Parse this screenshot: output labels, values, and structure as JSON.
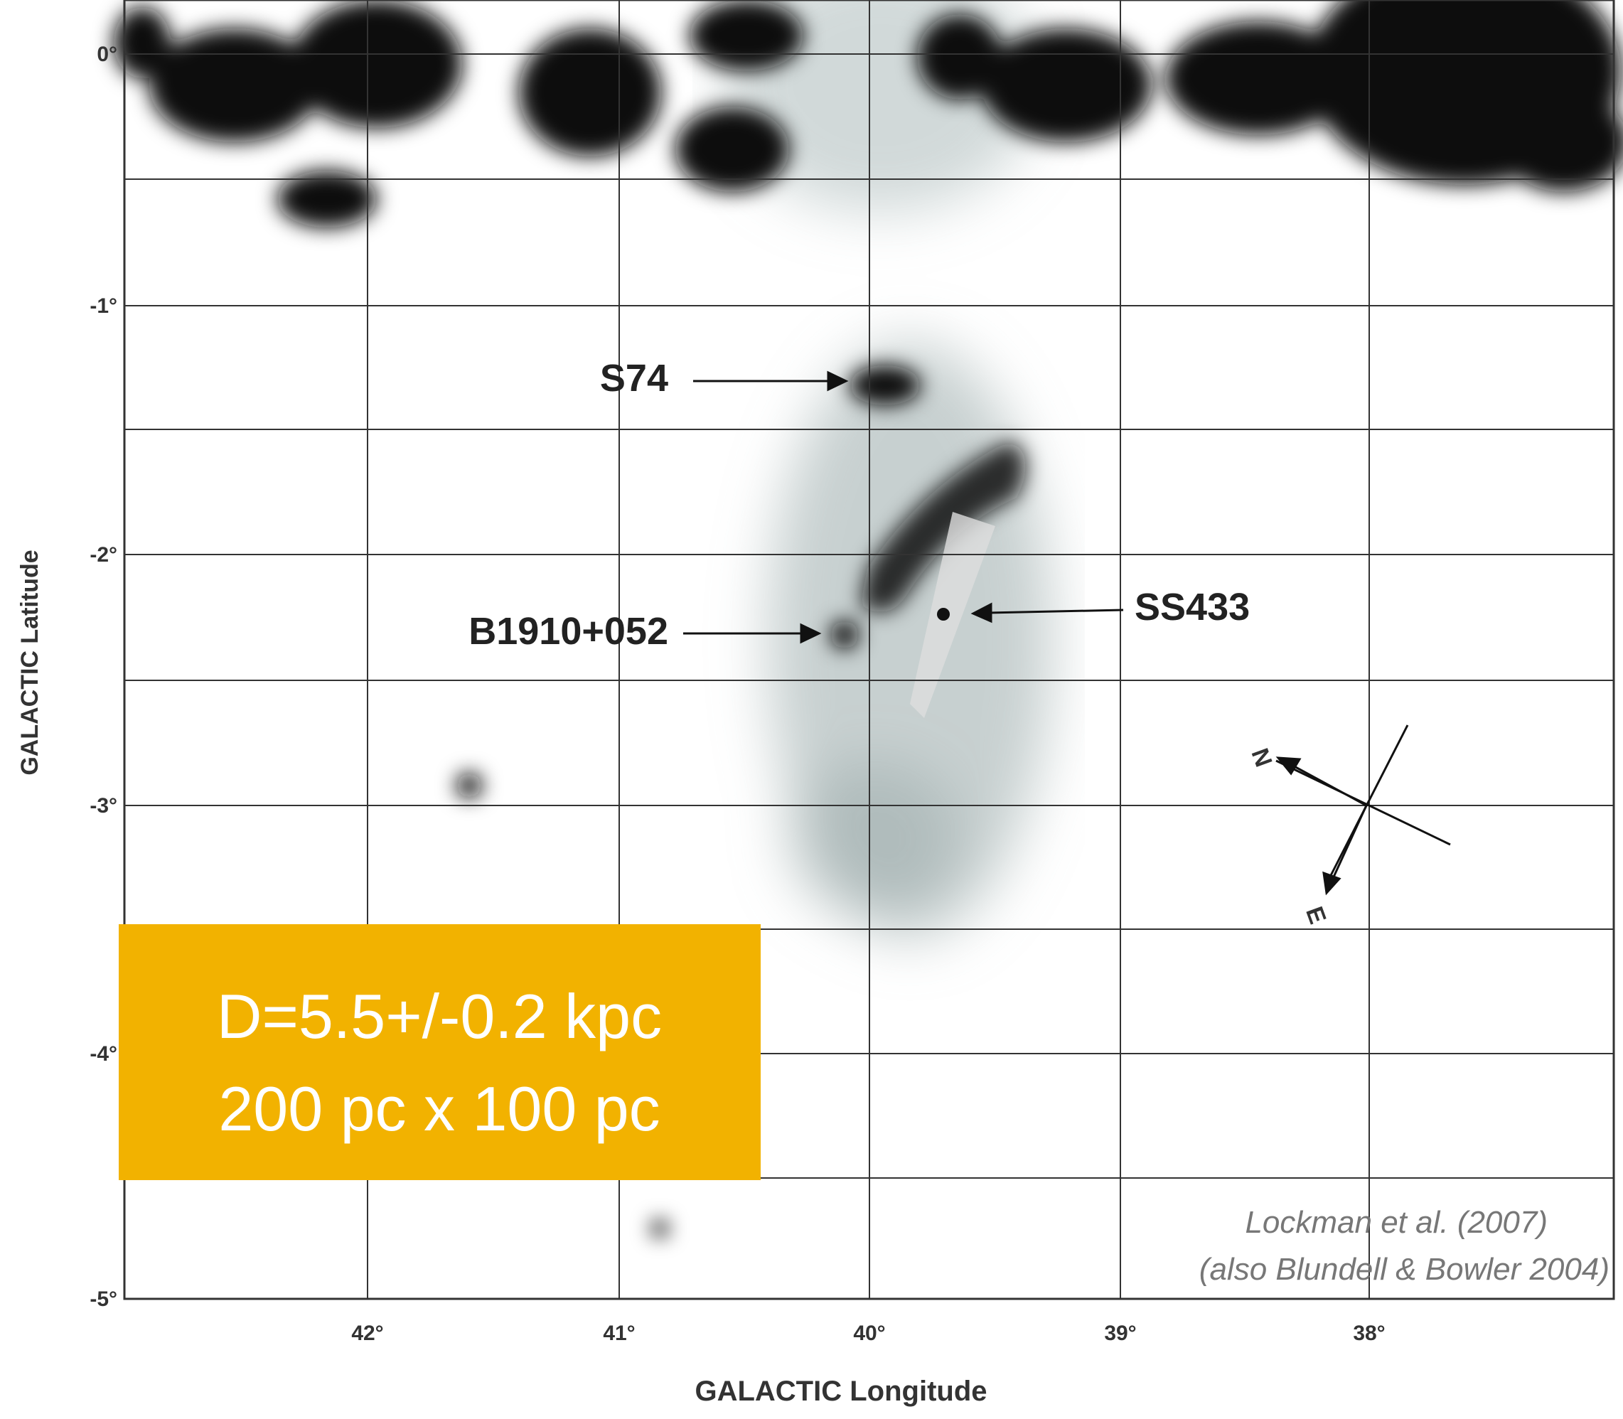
{
  "figure": {
    "y_axis": {
      "title": "GALACTIC Latitude",
      "ticks": [
        "0°",
        "-1°",
        "-2°",
        "-3°",
        "-4°",
        "-5°"
      ]
    },
    "x_axis": {
      "title": "GALACTIC Longitude",
      "ticks": [
        "42°",
        "41°",
        "40°",
        "39°",
        "38°"
      ]
    },
    "annotations": [
      "S74",
      "B1910+052",
      "SS433"
    ],
    "compass": [
      "N",
      "E"
    ],
    "overlay": {
      "lines": [
        "D=5.5+/-0.2 kpc",
        "200 pc x 100 pc"
      ]
    },
    "credit": [
      "Lockman et al. (2007)",
      "(also Blundell & Bowler 2004)"
    ]
  }
}
